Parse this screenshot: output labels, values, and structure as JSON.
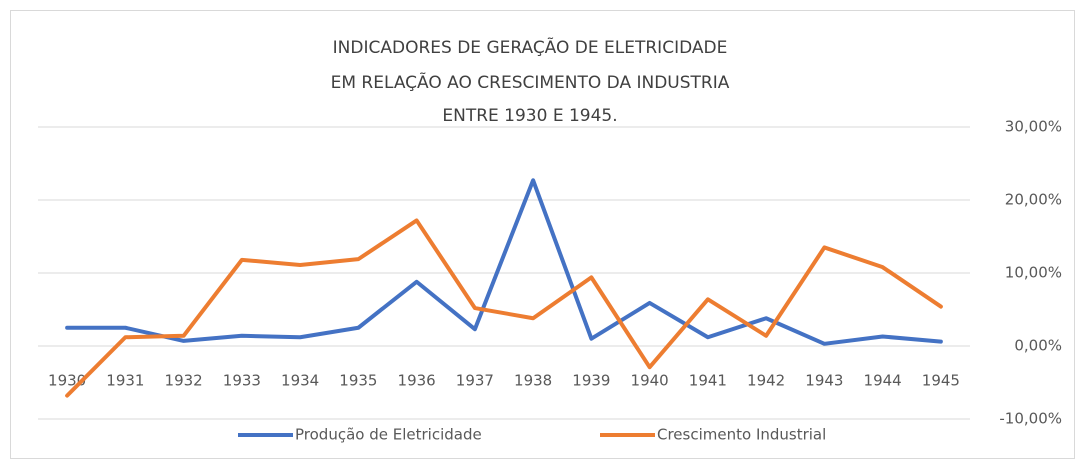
{
  "chart_data": {
    "type": "line",
    "title": [
      "INDICADORES DE GERAÇÃO DE ELETRICIDADE",
      "EM RELAÇÃO AO CRESCIMENTO DA INDUSTRIA",
      "ENTRE 1930 E 1945."
    ],
    "categories": [
      "1930",
      "1931",
      "1932",
      "1933",
      "1934",
      "1935",
      "1936",
      "1937",
      "1938",
      "1939",
      "1940",
      "1941",
      "1942",
      "1943",
      "1944",
      "1945"
    ],
    "series": [
      {
        "name": "Produção de Eletricidade",
        "color": "#4472c4",
        "values": [
          2.5,
          2.5,
          0.7,
          1.4,
          1.2,
          2.5,
          8.8,
          2.3,
          22.7,
          1.0,
          5.9,
          1.2,
          3.8,
          0.3,
          1.3,
          0.6
        ]
      },
      {
        "name": "Crescimento Industrial",
        "color": "#ed7d31",
        "values": [
          -6.8,
          1.2,
          1.4,
          11.8,
          11.1,
          11.9,
          17.2,
          5.2,
          3.8,
          9.4,
          -2.9,
          6.4,
          1.4,
          13.5,
          10.8,
          5.4
        ]
      }
    ],
    "ylim": [
      -10,
      30
    ],
    "yticks": [
      {
        "value": -10,
        "label": "-10,00%"
      },
      {
        "value": 0,
        "label": "0,00%"
      },
      {
        "value": 10,
        "label": "10,00%"
      },
      {
        "value": 20,
        "label": "20,00%"
      },
      {
        "value": 30,
        "label": "30,00%"
      }
    ],
    "grid": true,
    "legend": "bottom"
  }
}
